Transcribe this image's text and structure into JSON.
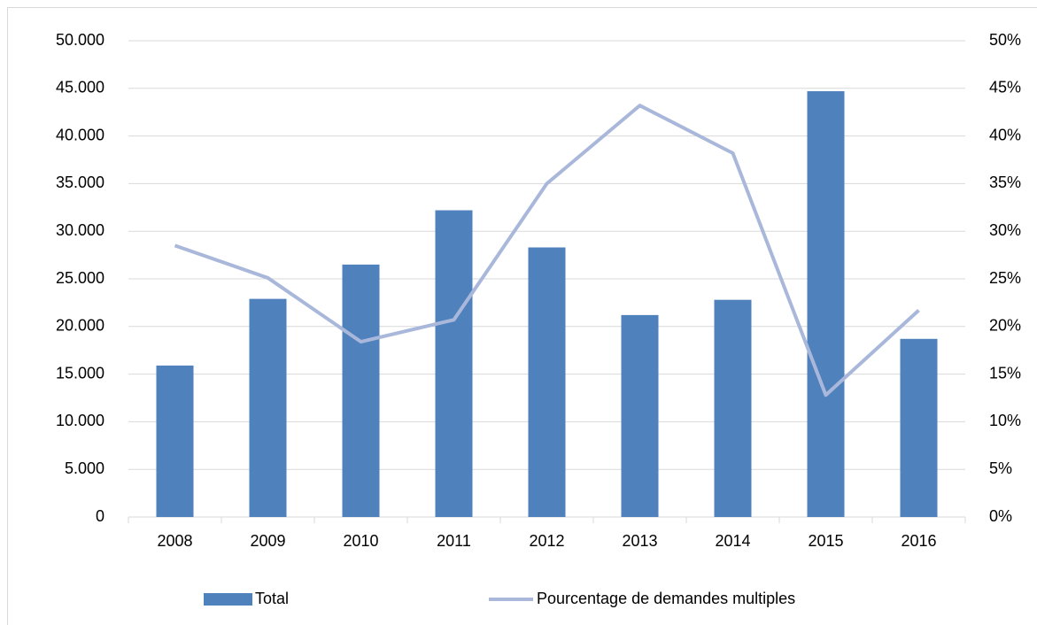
{
  "chart_data": {
    "type": "bar",
    "categories": [
      "2008",
      "2009",
      "2010",
      "2011",
      "2012",
      "2013",
      "2014",
      "2015",
      "2016"
    ],
    "series": [
      {
        "name": "Total",
        "type": "bar",
        "color": "#4f81bd",
        "values": [
          15900,
          22900,
          26500,
          32200,
          28300,
          21200,
          22800,
          44700,
          18700
        ]
      },
      {
        "name": "Pourcentage de demandes multiples",
        "type": "line",
        "axis": "y2",
        "color": "#a9b8da",
        "values": [
          28.5,
          25.1,
          18.4,
          20.7,
          35,
          43.2,
          38.2,
          12.8,
          21.7
        ]
      }
    ],
    "ylim": [
      0,
      50000
    ],
    "yticks": [
      0,
      {
        "value": 5000,
        "label": "5.000"
      },
      {
        "value": 10000,
        "label": "10.000"
      },
      {
        "value": 15000,
        "label": "15.000"
      },
      {
        "value": 20000,
        "label": "20.000"
      },
      {
        "value": 25000,
        "label": "25.000"
      },
      {
        "value": 30000,
        "label": "30.000"
      },
      {
        "value": 35000,
        "label": "35.000"
      },
      {
        "value": 40000,
        "label": "40.000"
      },
      {
        "value": 45000,
        "label": "45.000"
      },
      {
        "value": 50000,
        "label": "50.000"
      }
    ],
    "y2lim": [
      0,
      50
    ],
    "y2ticks": [
      {
        "value": 0,
        "label": "0%"
      },
      {
        "value": 5,
        "label": "5%"
      },
      {
        "value": 10,
        "label": "10%"
      },
      {
        "value": 15,
        "label": "15%"
      },
      {
        "value": 20,
        "label": "20%"
      },
      {
        "value": 25,
        "label": "25%"
      },
      {
        "value": 30,
        "label": "30%"
      },
      {
        "value": 35,
        "label": "35%"
      },
      {
        "value": 40,
        "label": "40%"
      },
      {
        "value": 45,
        "label": "45%"
      },
      {
        "value": 50,
        "label": "50%"
      }
    ],
    "grid": true,
    "legend": "bottom"
  }
}
